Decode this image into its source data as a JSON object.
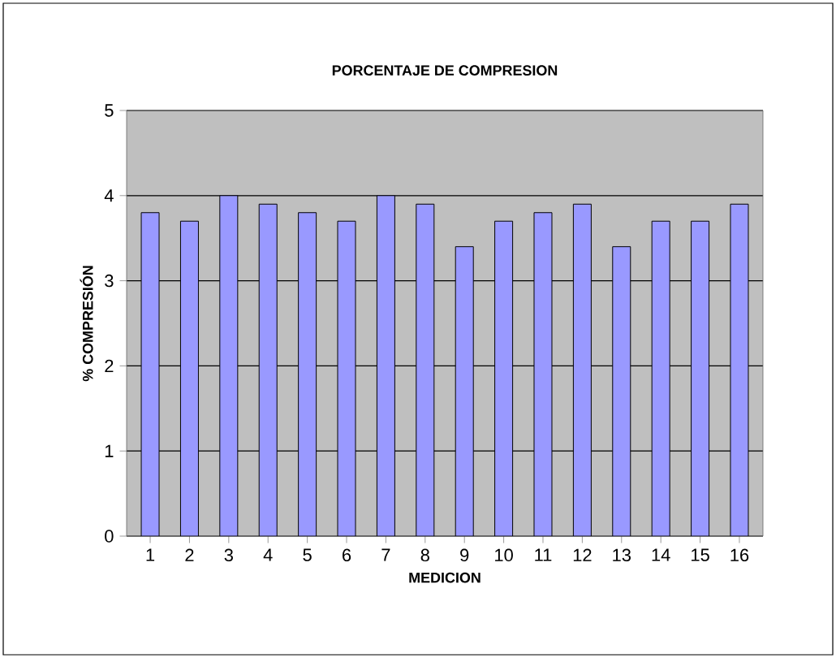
{
  "chart_data": {
    "type": "bar",
    "title": "PORCENTAJE DE COMPRESION",
    "xlabel": "MEDICION",
    "ylabel": "% COMPRESIÓN",
    "categories": [
      "1",
      "2",
      "3",
      "4",
      "5",
      "6",
      "7",
      "8",
      "9",
      "10",
      "11",
      "12",
      "13",
      "14",
      "15",
      "16"
    ],
    "values": [
      3.8,
      3.7,
      4.0,
      3.9,
      3.8,
      3.7,
      4.0,
      3.9,
      3.4,
      3.7,
      3.8,
      3.9,
      3.4,
      3.7,
      3.7,
      3.9
    ],
    "color": "#9999ff",
    "ylim": [
      0,
      5
    ],
    "yticks": [
      0,
      1,
      2,
      3,
      4,
      5
    ],
    "grid": "y"
  }
}
